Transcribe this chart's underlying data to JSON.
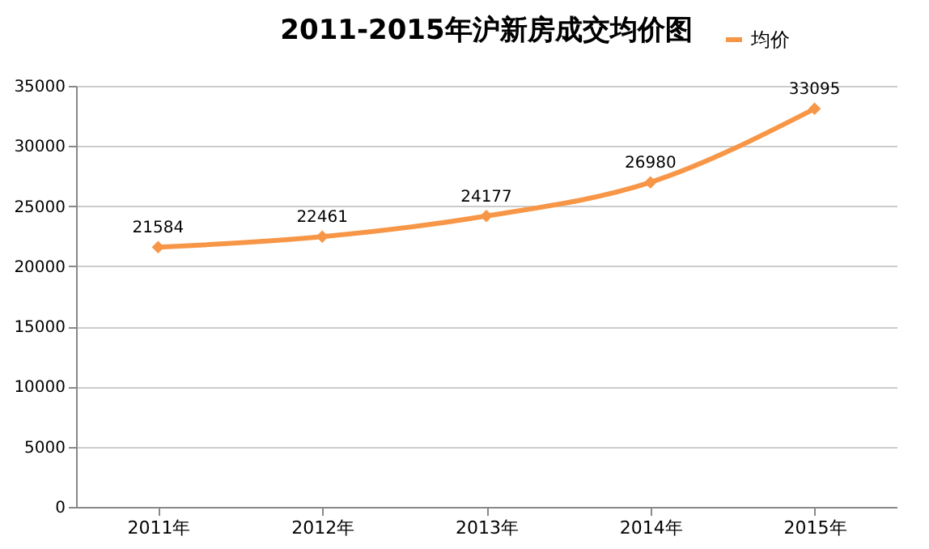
{
  "chart_data": {
    "type": "line",
    "title": "2011-2015年沪新房成交均价图",
    "categories": [
      "2011年",
      "2012年",
      "2013年",
      "2014年",
      "2015年"
    ],
    "series": [
      {
        "name": "均价",
        "color": "#f79646",
        "values": [
          21584,
          22461,
          24177,
          26980,
          33095
        ]
      }
    ],
    "ylim": [
      0,
      35000
    ],
    "yticks": [
      0,
      5000,
      10000,
      15000,
      20000,
      25000,
      30000,
      35000
    ],
    "grid": "y",
    "legend": "top right",
    "marker": "diamond",
    "line_style": "solid",
    "data_labels": true
  }
}
